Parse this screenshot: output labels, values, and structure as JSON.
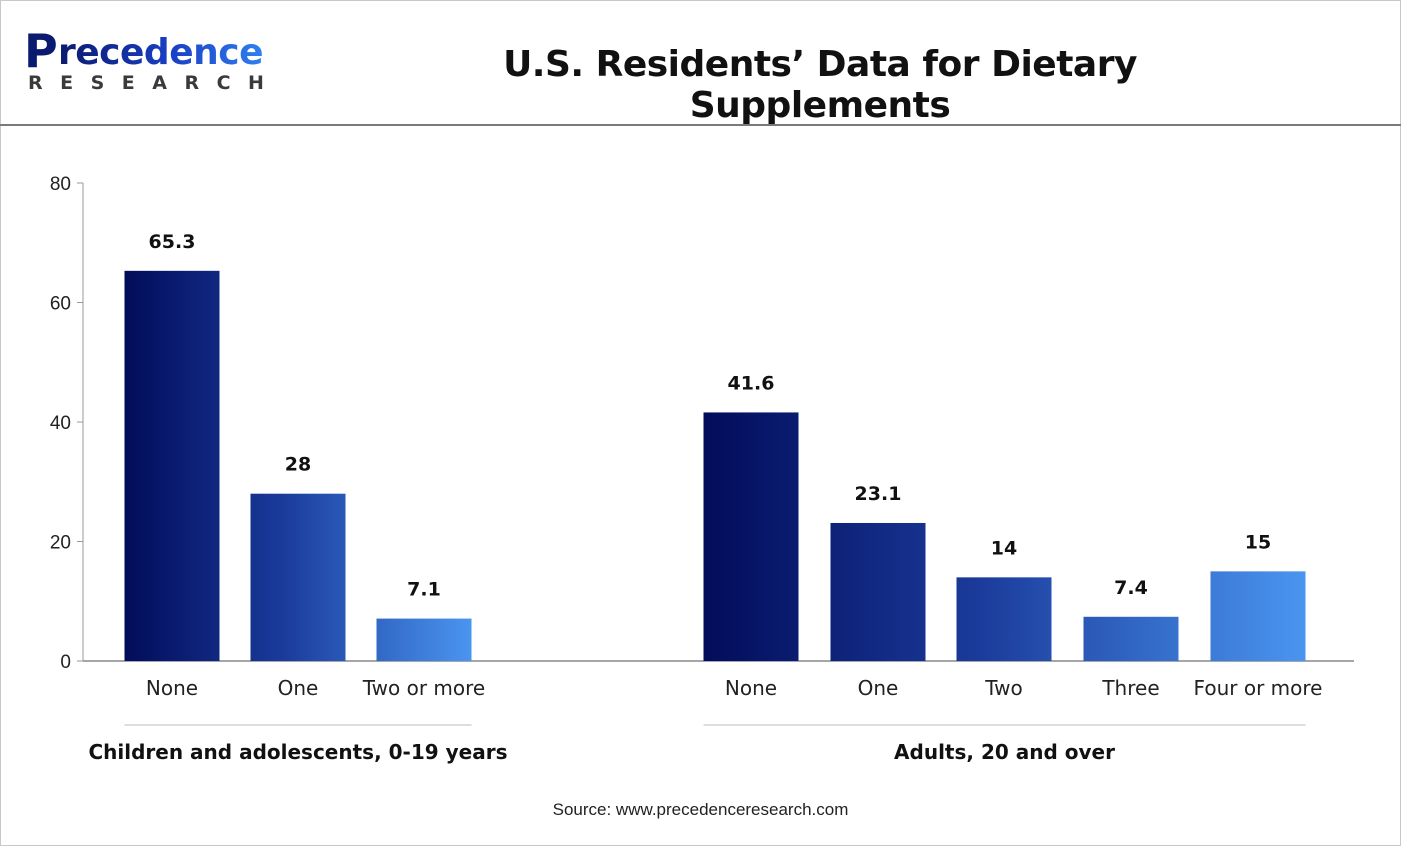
{
  "header": {
    "logo_text": "Precedence",
    "logo_subtext": "RESEARCH",
    "title": "U.S. Residents’ Data for Dietary Supplements"
  },
  "chart_data": {
    "type": "bar",
    "title": "U.S. Residents’ Data for Dietary Supplements",
    "ylim": [
      0,
      80
    ],
    "yticks": [
      0,
      20,
      40,
      60,
      80
    ],
    "grid": false,
    "legend": "none",
    "colors": {
      "dark": "#020c5a",
      "light": "#4a95f0"
    },
    "groups": [
      {
        "label": "Children and adolescents, 0-19 years",
        "categories": [
          "None",
          "One",
          "Two or more"
        ],
        "values": [
          65.3,
          28,
          7.1
        ],
        "data_labels": [
          "65.3",
          "28",
          "7.1"
        ]
      },
      {
        "label": "Adults, 20 and over",
        "categories": [
          "None",
          "One",
          "Two",
          "Three",
          "Four or more"
        ],
        "values": [
          41.6,
          23.1,
          14,
          7.4,
          15
        ],
        "data_labels": [
          "41.6",
          "23.1",
          "14",
          "7.4",
          "15"
        ]
      }
    ]
  },
  "footer": {
    "source": "Source: www.precedenceresearch.com"
  }
}
